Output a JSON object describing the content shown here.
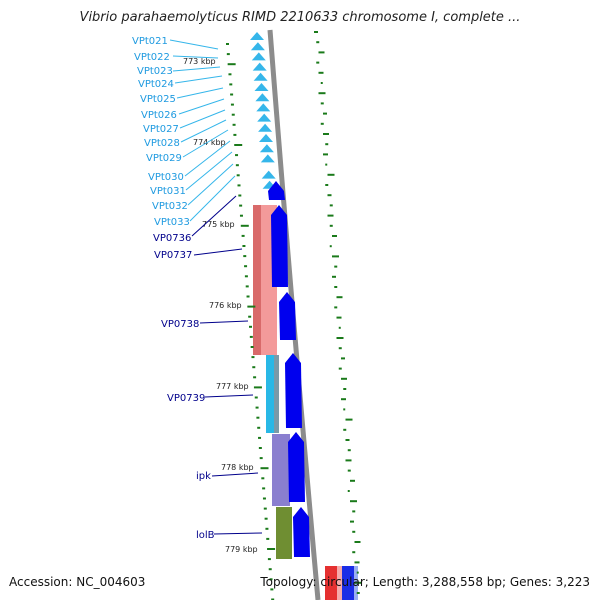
{
  "title": "Vibrio parahaemolyticus RIMD 2210633 chromosome I, complete ...",
  "footer": {
    "accession": "Accession: NC_004603",
    "topology": "Topology: circular; Length: 3,288,558 bp; Genes: 3,223"
  },
  "colors": {
    "trna_label": "#1e9ae0",
    "gene_label": "#00008b",
    "trna": "#35b6ea",
    "cds": "#0000ee",
    "backbone": "#8c8c8c",
    "tick": "#1a7a1a"
  },
  "scale_labels": [
    "773 kbp",
    "774 kbp",
    "775 kbp",
    "776 kbp",
    "777 kbp",
    "778 kbp",
    "779 kbp"
  ],
  "trna_labels": [
    "VPt021",
    "VPt022",
    "VPt023",
    "VPt024",
    "VPt025",
    "VPt026",
    "VPt027",
    "VPt028",
    "VPt029",
    "VPt030",
    "VPt031",
    "VPt032",
    "VPt033"
  ],
  "gene_labels": [
    "VP0736",
    "VP0737",
    "VP0738",
    "VP0739",
    "ipk",
    "lolB"
  ]
}
